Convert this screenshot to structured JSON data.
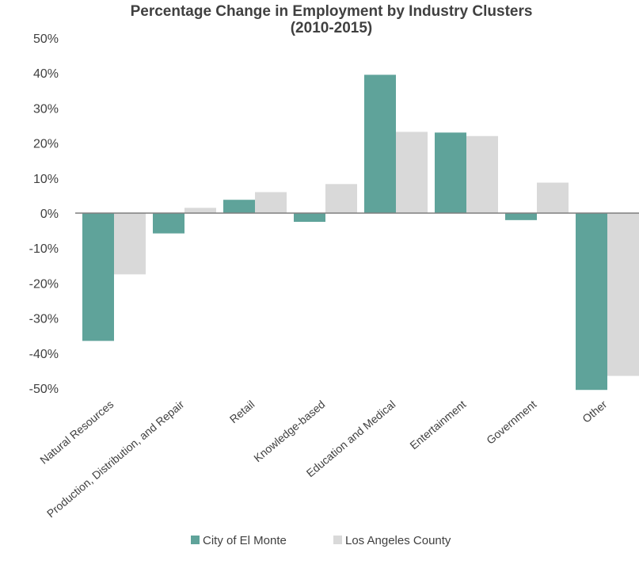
{
  "chart_data": {
    "type": "bar",
    "title": "Percentage Change in Employment by Industry Clusters",
    "subtitle": "(2010-2015)",
    "xlabel": "",
    "ylabel": "",
    "ylim": [
      -50,
      50
    ],
    "y_ticks": [
      "50%",
      "40%",
      "30%",
      "20%",
      "10%",
      "0%",
      "-10%",
      "-20%",
      "-30%",
      "-40%",
      "-50%"
    ],
    "categories": [
      "Natural Resources",
      "Production, Distribution, and Repair",
      "Retail",
      "Knowledge-based",
      "Education and Medical",
      "Entertainment",
      "Government",
      "Other"
    ],
    "series": [
      {
        "name": "City of El Monte",
        "color": "#5fa39a",
        "values": [
          -36.5,
          -5.8,
          3.8,
          -2.5,
          39.5,
          23.0,
          -2.0,
          -50.5
        ]
      },
      {
        "name": "Los Angeles County",
        "color": "#d9d9d9",
        "values": [
          -17.5,
          1.5,
          6.0,
          8.3,
          23.2,
          22.0,
          8.7,
          -46.5
        ]
      }
    ],
    "grid": false,
    "legend_position": "bottom"
  }
}
